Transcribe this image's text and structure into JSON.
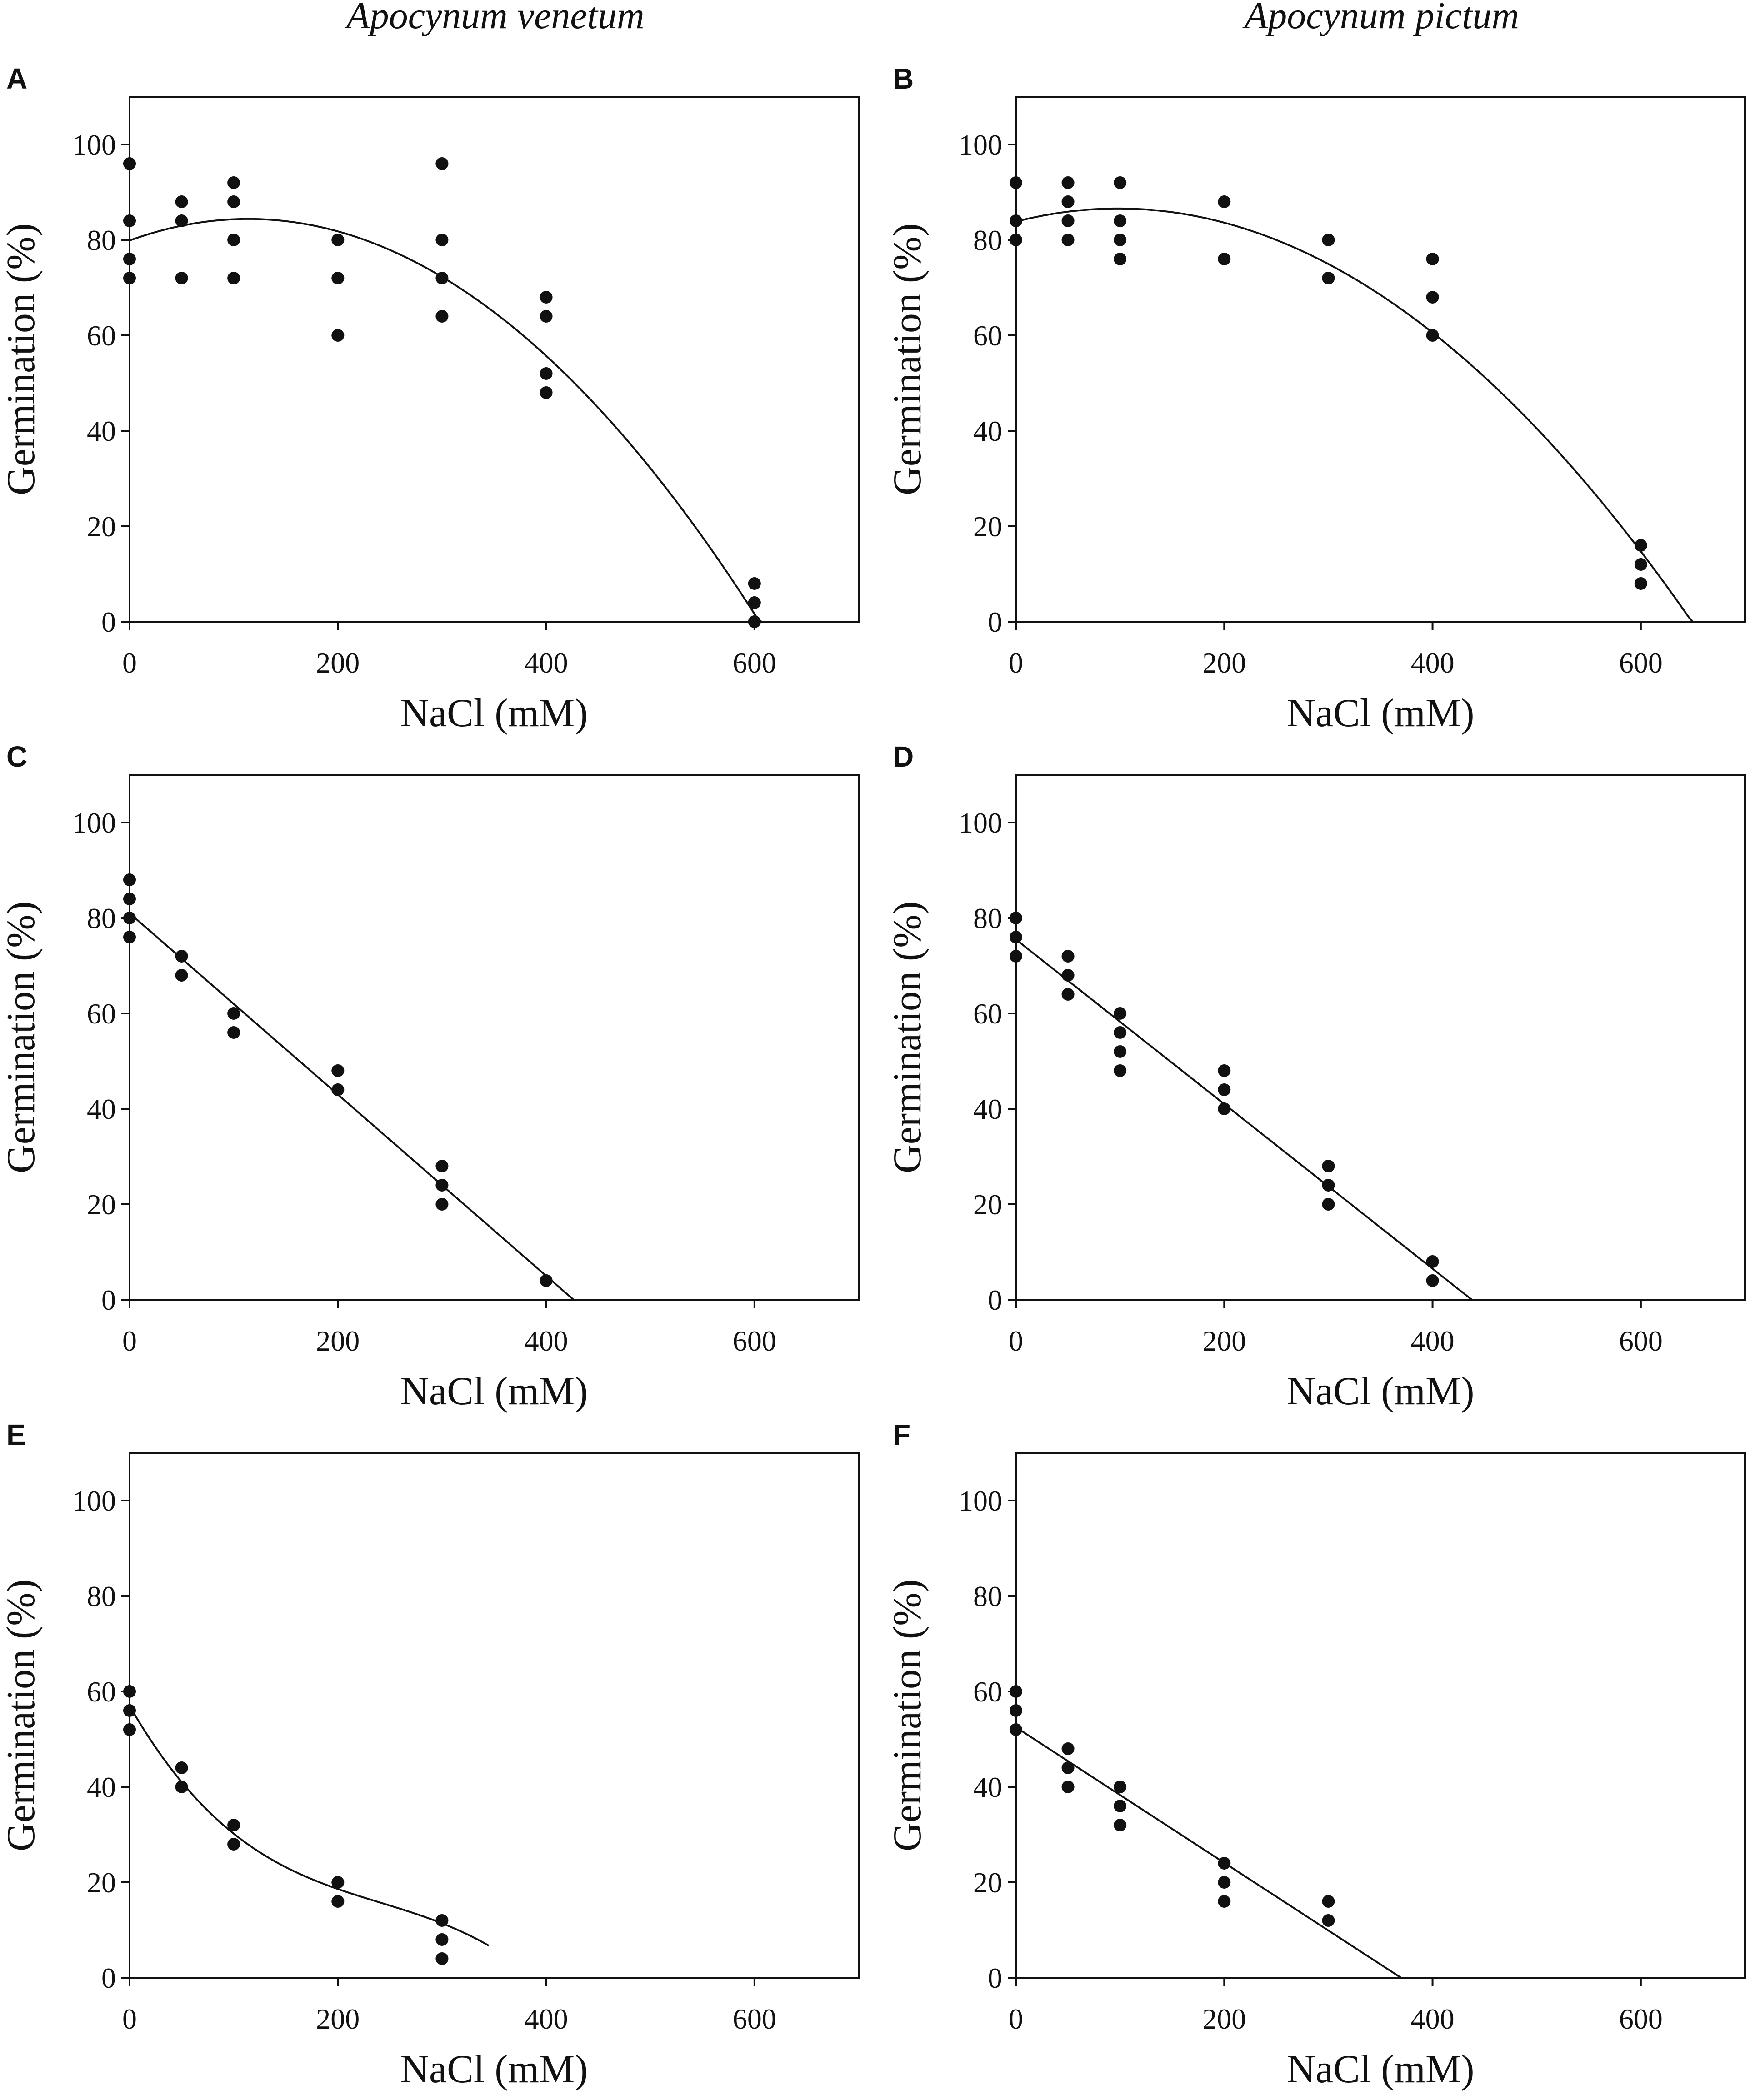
{
  "figure": {
    "column_titles": [
      "Apocynum venetum",
      "Apocynum pictum"
    ]
  },
  "chart_data": [
    {
      "panel": "A",
      "type": "scatter",
      "species": "Apocynum venetum",
      "xlabel": "NaCl (mM)",
      "ylabel": "Germination (%)",
      "xlim": [
        0,
        700
      ],
      "ylim": [
        0,
        110
      ],
      "xticks": [
        0,
        200,
        400,
        600
      ],
      "yticks": [
        0,
        20,
        40,
        60,
        80,
        100
      ],
      "points": [
        [
          0,
          96
        ],
        [
          0,
          84
        ],
        [
          0,
          76
        ],
        [
          0,
          72
        ],
        [
          50,
          88
        ],
        [
          50,
          84
        ],
        [
          50,
          72
        ],
        [
          100,
          92
        ],
        [
          100,
          88
        ],
        [
          100,
          80
        ],
        [
          100,
          72
        ],
        [
          200,
          80
        ],
        [
          200,
          72
        ],
        [
          200,
          60
        ],
        [
          300,
          96
        ],
        [
          300,
          80
        ],
        [
          300,
          72
        ],
        [
          300,
          64
        ],
        [
          400,
          68
        ],
        [
          400,
          64
        ],
        [
          400,
          52
        ],
        [
          400,
          48
        ],
        [
          600,
          8
        ],
        [
          600,
          4
        ],
        [
          600,
          0
        ]
      ],
      "fit": {
        "kind": "quadratic",
        "coef": [
          79.87,
          0.0796,
          -0.00035
        ],
        "x_range": [
          0,
          610
        ]
      }
    },
    {
      "panel": "B",
      "type": "scatter",
      "species": "Apocynum pictum",
      "xlabel": "NaCl (mM)",
      "ylabel": "Germination (%)",
      "xlim": [
        0,
        700
      ],
      "ylim": [
        0,
        110
      ],
      "xticks": [
        0,
        200,
        400,
        600
      ],
      "yticks": [
        0,
        20,
        40,
        60,
        80,
        100
      ],
      "points": [
        [
          0,
          92
        ],
        [
          0,
          84
        ],
        [
          0,
          80
        ],
        [
          50,
          92
        ],
        [
          50,
          88
        ],
        [
          50,
          84
        ],
        [
          50,
          80
        ],
        [
          100,
          92
        ],
        [
          100,
          84
        ],
        [
          100,
          80
        ],
        [
          100,
          76
        ],
        [
          200,
          88
        ],
        [
          200,
          76
        ],
        [
          300,
          80
        ],
        [
          300,
          72
        ],
        [
          400,
          76
        ],
        [
          400,
          68
        ],
        [
          400,
          60
        ],
        [
          600,
          16
        ],
        [
          600,
          12
        ],
        [
          600,
          8
        ]
      ],
      "fit": {
        "kind": "quadratic",
        "coef": [
          83.84,
          0.05592,
          -0.0002852
        ],
        "x_range": [
          0,
          650
        ]
      }
    },
    {
      "panel": "C",
      "type": "scatter",
      "species": "Apocynum venetum",
      "xlabel": "NaCl (mM)",
      "ylabel": "Germination (%)",
      "xlim": [
        0,
        700
      ],
      "ylim": [
        0,
        110
      ],
      "xticks": [
        0,
        200,
        400,
        600
      ],
      "yticks": [
        0,
        20,
        40,
        60,
        80,
        100
      ],
      "points": [
        [
          0,
          88
        ],
        [
          0,
          84
        ],
        [
          0,
          80
        ],
        [
          0,
          76
        ],
        [
          50,
          72
        ],
        [
          50,
          68
        ],
        [
          100,
          60
        ],
        [
          100,
          56
        ],
        [
          200,
          48
        ],
        [
          200,
          44
        ],
        [
          300,
          28
        ],
        [
          300,
          24
        ],
        [
          300,
          20
        ],
        [
          400,
          4
        ]
      ],
      "fit": {
        "kind": "linear",
        "coef": [
          81,
          -0.19
        ],
        "x_range": [
          0,
          426
        ]
      }
    },
    {
      "panel": "D",
      "type": "scatter",
      "species": "Apocynum pictum",
      "xlabel": "NaCl (mM)",
      "ylabel": "Germination  (%)",
      "xlim": [
        0,
        700
      ],
      "ylim": [
        0,
        110
      ],
      "xticks": [
        0,
        200,
        400,
        600
      ],
      "yticks": [
        0,
        20,
        40,
        60,
        80,
        100
      ],
      "points": [
        [
          0,
          80
        ],
        [
          0,
          76
        ],
        [
          0,
          72
        ],
        [
          50,
          72
        ],
        [
          50,
          68
        ],
        [
          50,
          64
        ],
        [
          100,
          60
        ],
        [
          100,
          56
        ],
        [
          100,
          52
        ],
        [
          100,
          48
        ],
        [
          200,
          48
        ],
        [
          200,
          44
        ],
        [
          200,
          40
        ],
        [
          300,
          28
        ],
        [
          300,
          24
        ],
        [
          300,
          20
        ],
        [
          400,
          8
        ],
        [
          400,
          4
        ]
      ],
      "fit": {
        "kind": "linear",
        "coef": [
          75.5,
          -0.1725
        ],
        "x_range": [
          0,
          438
        ]
      }
    },
    {
      "panel": "E",
      "type": "scatter",
      "species": "Apocynum venetum",
      "xlabel": "NaCl (mM)",
      "ylabel": "Germination (%)",
      "xlim": [
        0,
        700
      ],
      "ylim": [
        0,
        110
      ],
      "xticks": [
        0,
        200,
        400,
        600
      ],
      "yticks": [
        0,
        20,
        40,
        60,
        80,
        100
      ],
      "points": [
        [
          0,
          60
        ],
        [
          0,
          56
        ],
        [
          0,
          52
        ],
        [
          50,
          44
        ],
        [
          50,
          40
        ],
        [
          100,
          32
        ],
        [
          100,
          28
        ],
        [
          200,
          20
        ],
        [
          200,
          16
        ],
        [
          300,
          12
        ],
        [
          300,
          8
        ],
        [
          300,
          4
        ]
      ],
      "fit": {
        "kind": "cubic",
        "coef": [
          57,
          -0.38,
          0.0013,
          -1.8e-06
        ],
        "x_range": [
          0,
          345
        ]
      }
    },
    {
      "panel": "F",
      "type": "scatter",
      "species": "Apocynum pictum",
      "xlabel": "NaCl (mM)",
      "ylabel": "Germination (%)",
      "xlim": [
        0,
        700
      ],
      "ylim": [
        0,
        110
      ],
      "xticks": [
        0,
        200,
        400,
        600
      ],
      "yticks": [
        0,
        20,
        40,
        60,
        80,
        100
      ],
      "points": [
        [
          0,
          60
        ],
        [
          0,
          56
        ],
        [
          0,
          52
        ],
        [
          50,
          48
        ],
        [
          50,
          44
        ],
        [
          50,
          40
        ],
        [
          100,
          40
        ],
        [
          100,
          36
        ],
        [
          100,
          32
        ],
        [
          200,
          24
        ],
        [
          200,
          20
        ],
        [
          200,
          16
        ],
        [
          300,
          16
        ],
        [
          300,
          12
        ]
      ],
      "fit": {
        "kind": "linear",
        "coef": [
          52.5,
          -0.142
        ],
        "x_range": [
          0,
          370
        ]
      }
    }
  ]
}
